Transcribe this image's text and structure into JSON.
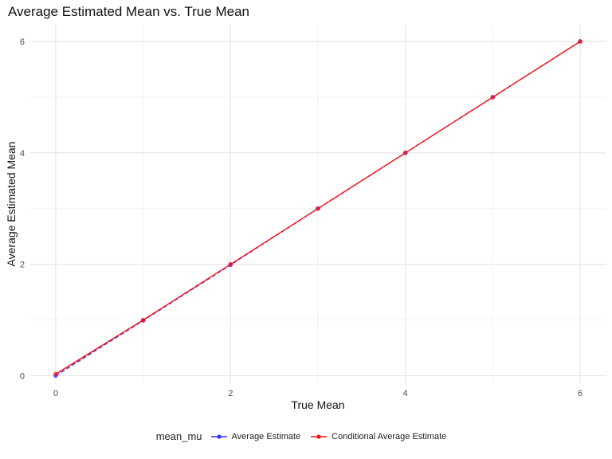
{
  "chart_data": {
    "type": "line",
    "title": "Average Estimated Mean vs. True Mean",
    "xlabel": "True Mean",
    "ylabel": "Average Estimated Mean",
    "x": [
      0,
      1,
      2,
      3,
      4,
      5,
      6
    ],
    "series": [
      {
        "name": "Average Estimate",
        "color": "#3333ff",
        "values": [
          0.0,
          0.99,
          1.99,
          3.0,
          4.0,
          5.0,
          6.0
        ]
      },
      {
        "name": "Conditional Average Estimate",
        "color": "#ff1111",
        "values": [
          0.03,
          1.0,
          2.0,
          3.0,
          4.0,
          5.0,
          6.0
        ]
      }
    ],
    "xlim": [
      -0.3,
      6.3
    ],
    "ylim": [
      -0.15,
      6.3
    ],
    "xticks": [
      0,
      2,
      4,
      6
    ],
    "yticks": [
      0,
      2,
      4,
      6
    ],
    "grid": true,
    "legend_title": "mean_mu",
    "legend_position": "bottom"
  }
}
